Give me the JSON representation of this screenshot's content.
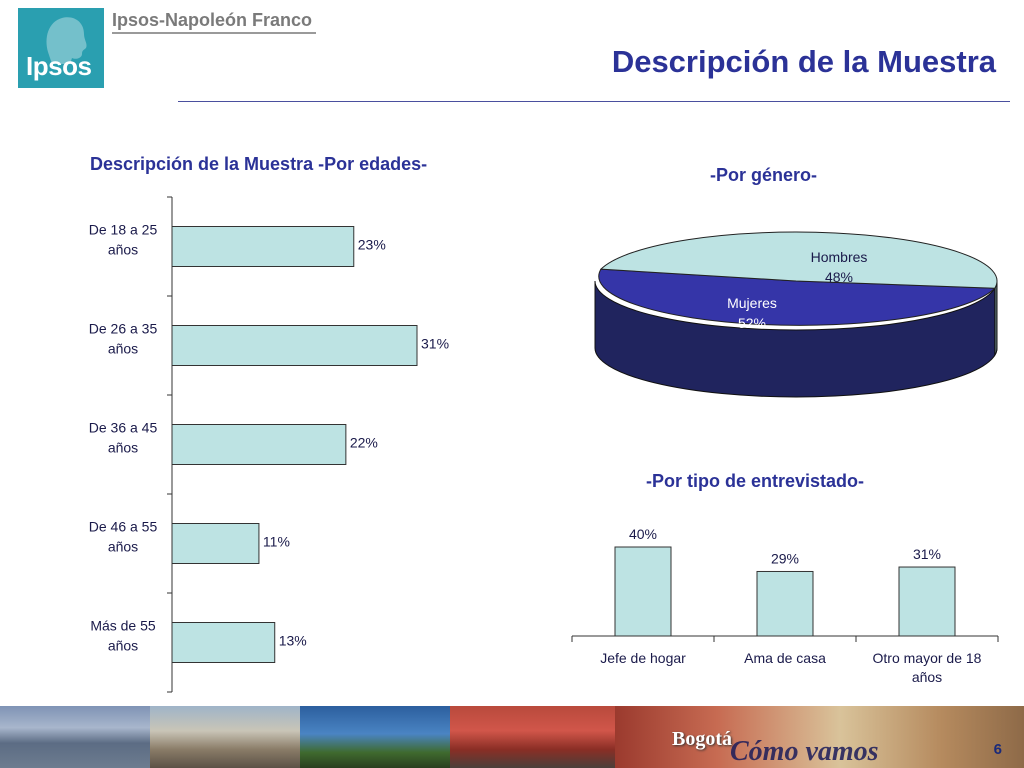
{
  "header": {
    "logo_text": "Ipsos",
    "company": "Ipsos-Napoleón Franco",
    "title": "Descripción de la Muestra"
  },
  "colors": {
    "accent": "#2b3297",
    "bar_fill": "#bde3e3",
    "bar_stroke": "#333333",
    "women": "#3535a8",
    "men": "#bde3e3"
  },
  "chart_data": [
    {
      "type": "bar",
      "orientation": "horizontal",
      "title": "Descripción de la Muestra -Por edades-",
      "categories": [
        "De 18 a 25 años",
        "De 26 a 35 años",
        "De 36 a 45 años",
        "De 46 a 55 años",
        "Más de 55 años"
      ],
      "category_lines": [
        [
          "De 18 a 25",
          "años"
        ],
        [
          "De 26 a 35",
          "años"
        ],
        [
          "De 36 a 45",
          "años"
        ],
        [
          "De 46 a 55",
          "años"
        ],
        [
          "Más de 55",
          "años"
        ]
      ],
      "values": [
        23,
        31,
        22,
        11,
        13
      ],
      "value_labels": [
        "23%",
        "31%",
        "22%",
        "11%",
        "13%"
      ],
      "unit": "%",
      "xlim": [
        0,
        40
      ],
      "grid": false
    },
    {
      "type": "pie",
      "style": "3d",
      "title": "-Por género-",
      "slices": [
        {
          "name": "Hombres",
          "value": 48,
          "label": "48%"
        },
        {
          "name": "Mujeres",
          "value": 52,
          "label": "52%"
        }
      ]
    },
    {
      "type": "bar",
      "orientation": "vertical",
      "title": "-Por tipo de entrevistado-",
      "categories": [
        "Jefe de hogar",
        "Ama de casa",
        "Otro mayor de 18 años"
      ],
      "category_lines": [
        [
          "Jefe de hogar"
        ],
        [
          "Ama de casa"
        ],
        [
          "Otro mayor de 18",
          "años"
        ]
      ],
      "values": [
        40,
        29,
        31
      ],
      "value_labels": [
        "40%",
        "29%",
        "31%"
      ],
      "unit": "%",
      "ylim": [
        0,
        45
      ],
      "grid": false
    }
  ],
  "footer": {
    "banner_text_1": "Bogotá",
    "banner_text_2": "Cómo vamos",
    "page_number": "6"
  }
}
